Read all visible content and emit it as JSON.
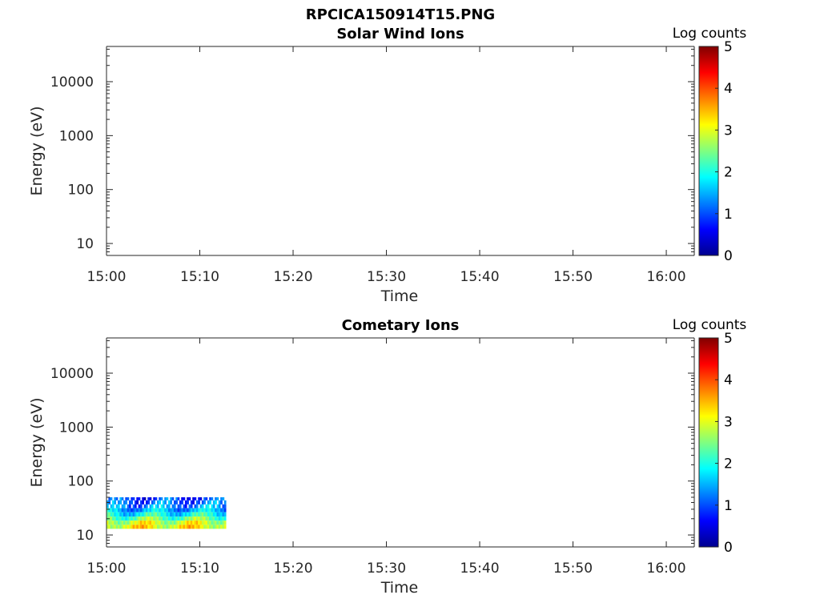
{
  "figure_title": "RPCICA150914T15.PNG",
  "chart_data": [
    {
      "type": "heatmap",
      "title": "Solar Wind Ions",
      "xlabel": "Time",
      "ylabel": "Energy (eV)",
      "x_ticks": [
        "15:00",
        "15:10",
        "15:20",
        "15:30",
        "15:40",
        "15:50",
        "16:00"
      ],
      "xlim_minutes": [
        0,
        63
      ],
      "y_scale": "log",
      "y_ticks": [
        10,
        100,
        1000,
        10000
      ],
      "y_tick_labels": [
        "10",
        "100",
        "1000",
        "10000"
      ],
      "ylim": [
        6,
        45000
      ],
      "colorbar": {
        "label": "Log counts",
        "range": [
          0,
          5
        ],
        "ticks": [
          "0",
          "1",
          "2",
          "3",
          "4",
          "5"
        ],
        "colormap": "jet"
      },
      "data_extent_minutes": null,
      "data_energy_range_eV": null
    },
    {
      "type": "heatmap",
      "title": "Cometary Ions",
      "xlabel": "Time",
      "ylabel": "Energy (eV)",
      "x_ticks": [
        "15:00",
        "15:10",
        "15:20",
        "15:30",
        "15:40",
        "15:50",
        "16:00"
      ],
      "xlim_minutes": [
        0,
        63
      ],
      "y_scale": "log",
      "y_ticks": [
        10,
        100,
        1000,
        10000
      ],
      "y_tick_labels": [
        "10",
        "100",
        "1000",
        "10000"
      ],
      "ylim": [
        6,
        45000
      ],
      "colorbar": {
        "label": "Log counts",
        "range": [
          0,
          5
        ],
        "ticks": [
          "0",
          "1",
          "2",
          "3",
          "4",
          "5"
        ],
        "colormap": "jet"
      },
      "data_extent_minutes": [
        0,
        12.8
      ],
      "data_energy_range_eV": [
        13,
        50
      ],
      "data_energy_bins_eV": [
        48,
        40,
        34,
        29,
        24,
        20,
        17,
        14
      ],
      "data_row_log_counts": [
        0.9,
        1.1,
        1.3,
        1.5,
        1.9,
        2.4,
        2.9,
        3.1
      ]
    }
  ]
}
